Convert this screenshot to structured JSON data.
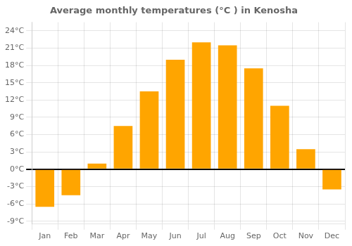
{
  "chart_data": {
    "type": "bar",
    "title": "Average monthly temperatures (°C ) in Kenosha",
    "categories": [
      "Jan",
      "Feb",
      "Mar",
      "Apr",
      "May",
      "Jun",
      "Jul",
      "Aug",
      "Sep",
      "Oct",
      "Nov",
      "Dec"
    ],
    "values": [
      -6.5,
      -4.5,
      1.0,
      7.5,
      13.5,
      19.0,
      22.0,
      21.5,
      17.5,
      11.0,
      3.5,
      -3.5
    ],
    "color": "#FFA500",
    "ylim": [
      -9.5,
      25.5
    ],
    "yticks": [
      {
        "value": -9,
        "label": "-9°C"
      },
      {
        "value": -6,
        "label": "-6°C"
      },
      {
        "value": -3,
        "label": "-3°C"
      },
      {
        "value": 0,
        "label": "0°C"
      },
      {
        "value": 3,
        "label": "3°C"
      },
      {
        "value": 6,
        "label": "6°C"
      },
      {
        "value": 9,
        "label": "9°C"
      },
      {
        "value": 12,
        "label": "12°C"
      },
      {
        "value": 15,
        "label": "15°C"
      },
      {
        "value": 18,
        "label": "18°C"
      },
      {
        "value": 21,
        "label": "21°C"
      },
      {
        "value": 24,
        "label": "24°C"
      }
    ],
    "grid": true
  }
}
